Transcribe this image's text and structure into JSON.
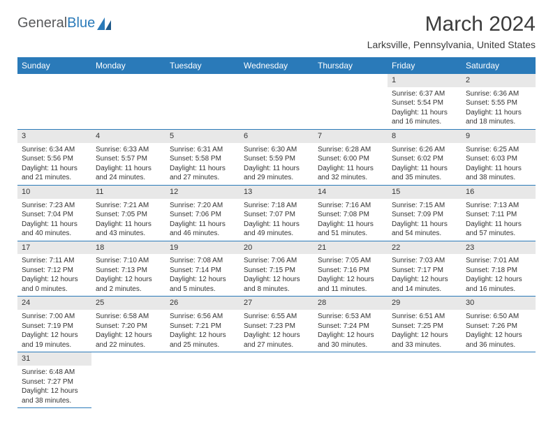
{
  "logo": {
    "text1": "General",
    "text2": "Blue"
  },
  "colors": {
    "header_bg": "#2a7ab9",
    "header_text": "#ffffff",
    "daynum_bg": "#e8e8e8",
    "border": "#2a7ab9",
    "text": "#333333",
    "logo_gray": "#58595b",
    "logo_blue": "#2a7ab9",
    "page_bg": "#ffffff"
  },
  "typography": {
    "title_fontsize": 30,
    "subtitle_fontsize": 14,
    "dayheader_fontsize": 12,
    "daynum_fontsize": 11,
    "body_fontsize": 10
  },
  "title": "March 2024",
  "subtitle": "Larksville, Pennsylvania, United States",
  "day_headers": [
    "Sunday",
    "Monday",
    "Tuesday",
    "Wednesday",
    "Thursday",
    "Friday",
    "Saturday"
  ],
  "weeks": [
    [
      null,
      null,
      null,
      null,
      null,
      {
        "n": "1",
        "sunrise": "Sunrise: 6:37 AM",
        "sunset": "Sunset: 5:54 PM",
        "daylight": "Daylight: 11 hours and 16 minutes."
      },
      {
        "n": "2",
        "sunrise": "Sunrise: 6:36 AM",
        "sunset": "Sunset: 5:55 PM",
        "daylight": "Daylight: 11 hours and 18 minutes."
      }
    ],
    [
      {
        "n": "3",
        "sunrise": "Sunrise: 6:34 AM",
        "sunset": "Sunset: 5:56 PM",
        "daylight": "Daylight: 11 hours and 21 minutes."
      },
      {
        "n": "4",
        "sunrise": "Sunrise: 6:33 AM",
        "sunset": "Sunset: 5:57 PM",
        "daylight": "Daylight: 11 hours and 24 minutes."
      },
      {
        "n": "5",
        "sunrise": "Sunrise: 6:31 AM",
        "sunset": "Sunset: 5:58 PM",
        "daylight": "Daylight: 11 hours and 27 minutes."
      },
      {
        "n": "6",
        "sunrise": "Sunrise: 6:30 AM",
        "sunset": "Sunset: 5:59 PM",
        "daylight": "Daylight: 11 hours and 29 minutes."
      },
      {
        "n": "7",
        "sunrise": "Sunrise: 6:28 AM",
        "sunset": "Sunset: 6:00 PM",
        "daylight": "Daylight: 11 hours and 32 minutes."
      },
      {
        "n": "8",
        "sunrise": "Sunrise: 6:26 AM",
        "sunset": "Sunset: 6:02 PM",
        "daylight": "Daylight: 11 hours and 35 minutes."
      },
      {
        "n": "9",
        "sunrise": "Sunrise: 6:25 AM",
        "sunset": "Sunset: 6:03 PM",
        "daylight": "Daylight: 11 hours and 38 minutes."
      }
    ],
    [
      {
        "n": "10",
        "sunrise": "Sunrise: 7:23 AM",
        "sunset": "Sunset: 7:04 PM",
        "daylight": "Daylight: 11 hours and 40 minutes."
      },
      {
        "n": "11",
        "sunrise": "Sunrise: 7:21 AM",
        "sunset": "Sunset: 7:05 PM",
        "daylight": "Daylight: 11 hours and 43 minutes."
      },
      {
        "n": "12",
        "sunrise": "Sunrise: 7:20 AM",
        "sunset": "Sunset: 7:06 PM",
        "daylight": "Daylight: 11 hours and 46 minutes."
      },
      {
        "n": "13",
        "sunrise": "Sunrise: 7:18 AM",
        "sunset": "Sunset: 7:07 PM",
        "daylight": "Daylight: 11 hours and 49 minutes."
      },
      {
        "n": "14",
        "sunrise": "Sunrise: 7:16 AM",
        "sunset": "Sunset: 7:08 PM",
        "daylight": "Daylight: 11 hours and 51 minutes."
      },
      {
        "n": "15",
        "sunrise": "Sunrise: 7:15 AM",
        "sunset": "Sunset: 7:09 PM",
        "daylight": "Daylight: 11 hours and 54 minutes."
      },
      {
        "n": "16",
        "sunrise": "Sunrise: 7:13 AM",
        "sunset": "Sunset: 7:11 PM",
        "daylight": "Daylight: 11 hours and 57 minutes."
      }
    ],
    [
      {
        "n": "17",
        "sunrise": "Sunrise: 7:11 AM",
        "sunset": "Sunset: 7:12 PM",
        "daylight": "Daylight: 12 hours and 0 minutes."
      },
      {
        "n": "18",
        "sunrise": "Sunrise: 7:10 AM",
        "sunset": "Sunset: 7:13 PM",
        "daylight": "Daylight: 12 hours and 2 minutes."
      },
      {
        "n": "19",
        "sunrise": "Sunrise: 7:08 AM",
        "sunset": "Sunset: 7:14 PM",
        "daylight": "Daylight: 12 hours and 5 minutes."
      },
      {
        "n": "20",
        "sunrise": "Sunrise: 7:06 AM",
        "sunset": "Sunset: 7:15 PM",
        "daylight": "Daylight: 12 hours and 8 minutes."
      },
      {
        "n": "21",
        "sunrise": "Sunrise: 7:05 AM",
        "sunset": "Sunset: 7:16 PM",
        "daylight": "Daylight: 12 hours and 11 minutes."
      },
      {
        "n": "22",
        "sunrise": "Sunrise: 7:03 AM",
        "sunset": "Sunset: 7:17 PM",
        "daylight": "Daylight: 12 hours and 14 minutes."
      },
      {
        "n": "23",
        "sunrise": "Sunrise: 7:01 AM",
        "sunset": "Sunset: 7:18 PM",
        "daylight": "Daylight: 12 hours and 16 minutes."
      }
    ],
    [
      {
        "n": "24",
        "sunrise": "Sunrise: 7:00 AM",
        "sunset": "Sunset: 7:19 PM",
        "daylight": "Daylight: 12 hours and 19 minutes."
      },
      {
        "n": "25",
        "sunrise": "Sunrise: 6:58 AM",
        "sunset": "Sunset: 7:20 PM",
        "daylight": "Daylight: 12 hours and 22 minutes."
      },
      {
        "n": "26",
        "sunrise": "Sunrise: 6:56 AM",
        "sunset": "Sunset: 7:21 PM",
        "daylight": "Daylight: 12 hours and 25 minutes."
      },
      {
        "n": "27",
        "sunrise": "Sunrise: 6:55 AM",
        "sunset": "Sunset: 7:23 PM",
        "daylight": "Daylight: 12 hours and 27 minutes."
      },
      {
        "n": "28",
        "sunrise": "Sunrise: 6:53 AM",
        "sunset": "Sunset: 7:24 PM",
        "daylight": "Daylight: 12 hours and 30 minutes."
      },
      {
        "n": "29",
        "sunrise": "Sunrise: 6:51 AM",
        "sunset": "Sunset: 7:25 PM",
        "daylight": "Daylight: 12 hours and 33 minutes."
      },
      {
        "n": "30",
        "sunrise": "Sunrise: 6:50 AM",
        "sunset": "Sunset: 7:26 PM",
        "daylight": "Daylight: 12 hours and 36 minutes."
      }
    ],
    [
      {
        "n": "31",
        "sunrise": "Sunrise: 6:48 AM",
        "sunset": "Sunset: 7:27 PM",
        "daylight": "Daylight: 12 hours and 38 minutes."
      },
      null,
      null,
      null,
      null,
      null,
      null
    ]
  ]
}
